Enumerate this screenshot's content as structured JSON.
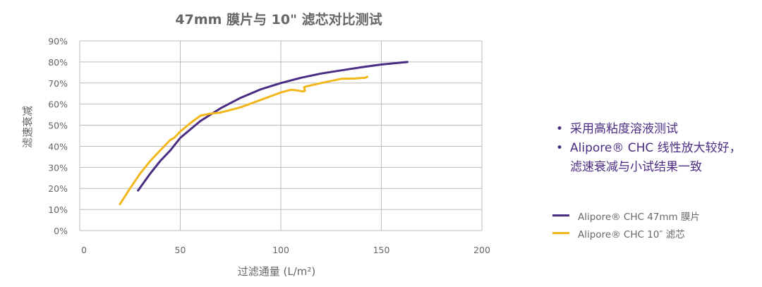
{
  "chart_data": {
    "type": "line",
    "title": "47mm 膜片与 10\" 滤芯对比测试",
    "xlabel": "过滤通量 (L/m²)",
    "ylabel": "滤速衰减",
    "xlim": [
      0,
      200
    ],
    "ylim": [
      0,
      90
    ],
    "xticks": [
      "0",
      "50",
      "100",
      "150",
      "200"
    ],
    "yticks": [
      "0%",
      "10%",
      "20%",
      "30%",
      "40%",
      "50%",
      "60%",
      "70%",
      "80%",
      "90%"
    ],
    "grid": true,
    "legend_position": "right",
    "series": [
      {
        "name": "Alipore® CHC 47mm 膜片",
        "color": "#4a2d82",
        "x": [
          29,
          35,
          40,
          45,
          50,
          55,
          60,
          70,
          80,
          90,
          100,
          110,
          120,
          130,
          140,
          150,
          163
        ],
        "y": [
          19,
          27,
          33,
          38,
          44,
          48,
          52,
          58,
          63,
          67,
          70,
          72.5,
          74.5,
          76,
          77.5,
          78.8,
          80
        ]
      },
      {
        "name": "Alipore® CHC 10″ 滤芯",
        "color": "#f2b71b",
        "x": [
          20,
          25,
          30,
          35,
          40,
          45,
          47,
          50,
          55,
          60,
          65,
          70,
          80,
          90,
          100,
          105,
          108,
          111,
          112,
          111.5,
          113,
          120,
          130,
          137,
          142,
          143
        ],
        "y": [
          12.5,
          20,
          27,
          33,
          38,
          43,
          44,
          47,
          51,
          54.5,
          55.5,
          56,
          58.5,
          62,
          65.5,
          66.8,
          66.5,
          66,
          66.3,
          68,
          68.5,
          70,
          72,
          72.2,
          72.5,
          73
        ]
      }
    ]
  },
  "notes": [
    "采用高粘度溶液测试",
    "Alipore® CHC 线性放大较好，",
    "滤速衰减与小试结果一致"
  ]
}
